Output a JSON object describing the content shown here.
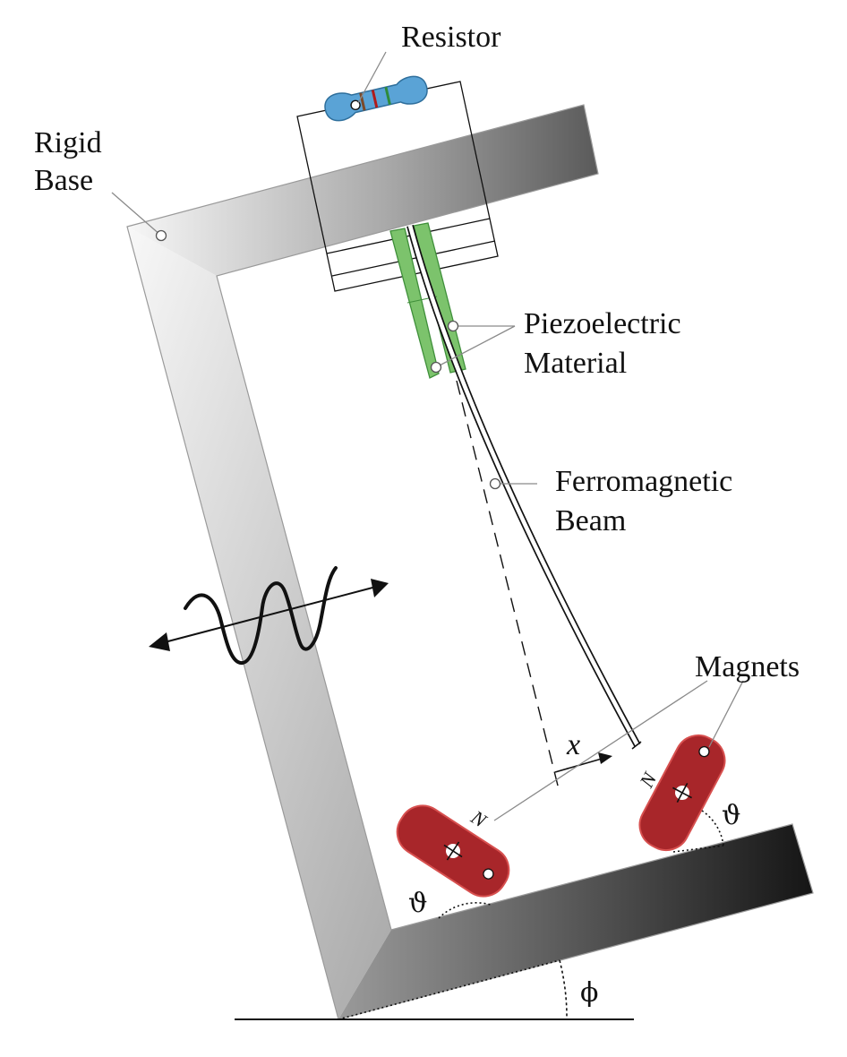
{
  "labels": {
    "resistor": "Resistor",
    "rigid_base_line1": "Rigid",
    "rigid_base_line2": "Base",
    "piezo_line1": "Piezoelectric",
    "piezo_line2": "Material",
    "beam_line1": "Ferromagnetic",
    "beam_line2": "Beam",
    "magnets": "Magnets",
    "displacement": "x",
    "pole_left": "N",
    "pole_right": "N",
    "angle_left": "ϑ",
    "angle_right": "ϑ",
    "tilt_angle": "ϕ"
  },
  "colors": {
    "magnet_fill": "#a8262a",
    "magnet_stroke": "#d7504f",
    "piezo_fill": "#7cc36c",
    "piezo_stroke": "#3f8f3a",
    "resistor_fill": "#5aa3d6",
    "resistor_stroke": "#2f6f9c",
    "frame_light": "#f6f6f6",
    "frame_dark": "#151515"
  }
}
